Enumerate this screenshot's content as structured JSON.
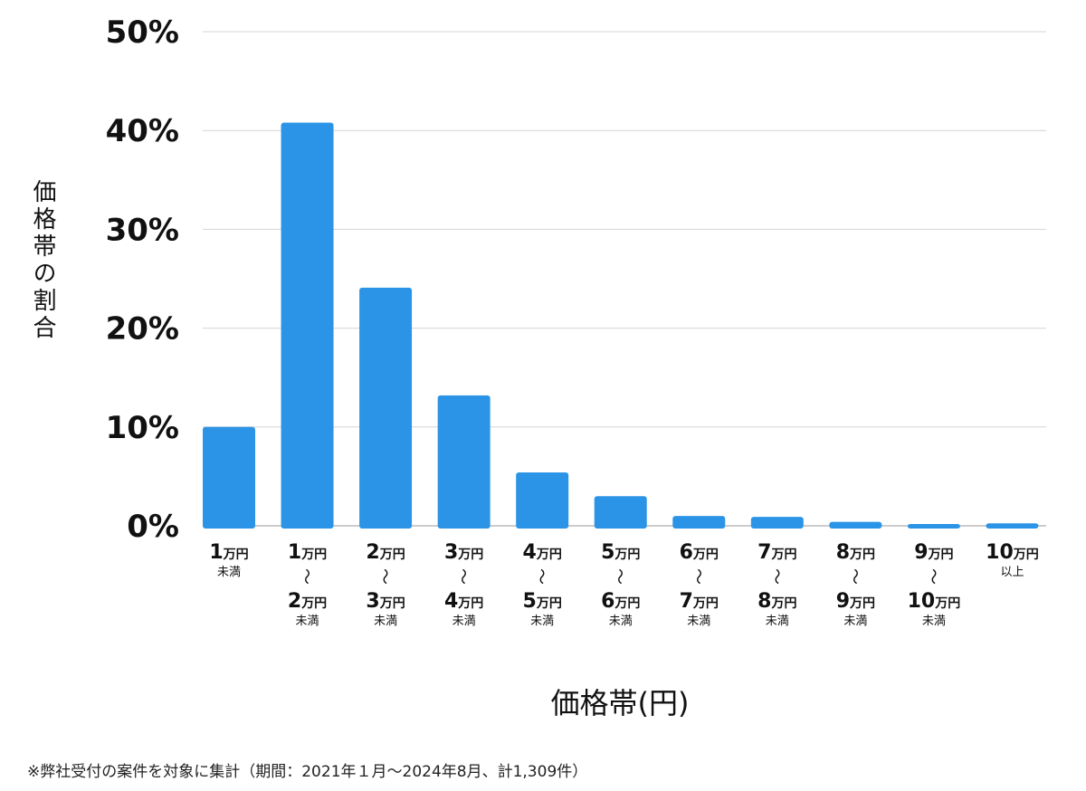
{
  "chart_data": {
    "type": "bar",
    "ylabel": "価格帯の割合",
    "xlabel": "価格帯(円)",
    "ylim": [
      0,
      50
    ],
    "yticks": [
      0,
      10,
      20,
      30,
      40,
      50
    ],
    "ytick_labels": [
      "0%",
      "10%",
      "20%",
      "30%",
      "40%",
      "50%"
    ],
    "grid": true,
    "bar_color": "#2b94e6",
    "categories": [
      {
        "from": "1",
        "from_unit": "万円",
        "to": "",
        "to_unit": "",
        "tilde": "",
        "suffix": "未満"
      },
      {
        "from": "1",
        "from_unit": "万円",
        "tilde": "〜",
        "to": "2",
        "to_unit": "万円",
        "suffix": "未満"
      },
      {
        "from": "2",
        "from_unit": "万円",
        "tilde": "〜",
        "to": "3",
        "to_unit": "万円",
        "suffix": "未満"
      },
      {
        "from": "3",
        "from_unit": "万円",
        "tilde": "〜",
        "to": "4",
        "to_unit": "万円",
        "suffix": "未満"
      },
      {
        "from": "4",
        "from_unit": "万円",
        "tilde": "〜",
        "to": "5",
        "to_unit": "万円",
        "suffix": "未満"
      },
      {
        "from": "5",
        "from_unit": "万円",
        "tilde": "〜",
        "to": "6",
        "to_unit": "万円",
        "suffix": "未満"
      },
      {
        "from": "6",
        "from_unit": "万円",
        "tilde": "〜",
        "to": "7",
        "to_unit": "万円",
        "suffix": "未満"
      },
      {
        "from": "7",
        "from_unit": "万円",
        "tilde": "〜",
        "to": "8",
        "to_unit": "万円",
        "suffix": "未満"
      },
      {
        "from": "8",
        "from_unit": "万円",
        "tilde": "〜",
        "to": "9",
        "to_unit": "万円",
        "suffix": "未満"
      },
      {
        "from": "9",
        "from_unit": "万円",
        "tilde": "〜",
        "to": "10",
        "to_unit": "万円",
        "suffix": "未満"
      },
      {
        "from": "10",
        "from_unit": "万円",
        "to": "",
        "to_unit": "",
        "tilde": "",
        "suffix": "以上"
      }
    ],
    "values": [
      10.0,
      40.8,
      24.1,
      13.2,
      5.4,
      3.0,
      1.0,
      0.9,
      0.4,
      0.15,
      0.25
    ]
  },
  "footnote": "※弊社受付の案件を対象に集計（期間：2021年１月〜2024年8月、計1,309件）"
}
